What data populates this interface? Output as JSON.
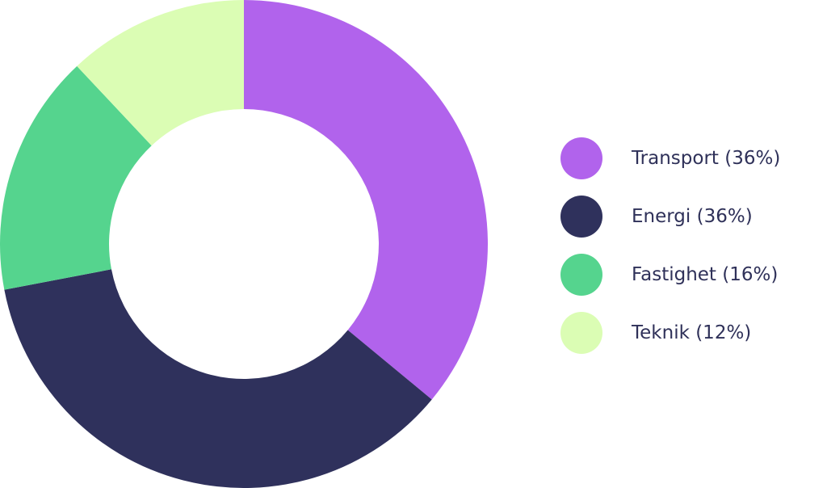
{
  "chart_data": {
    "type": "pie",
    "variant": "donut",
    "title": "",
    "categories": [
      "Transport",
      "Energi",
      "Fastighet",
      "Teknik"
    ],
    "values": [
      36,
      36,
      16,
      12
    ],
    "unit": "%",
    "colors": [
      "#b163ec",
      "#2f315c",
      "#55d48e",
      "#dbfdb4"
    ],
    "legend_labels": [
      "Transport (36%)",
      "Energi (36%)",
      "Fastighet (16%)",
      "Teknik (12%)"
    ],
    "legend_position": "right",
    "start_angle": "top",
    "direction": "clockwise"
  }
}
